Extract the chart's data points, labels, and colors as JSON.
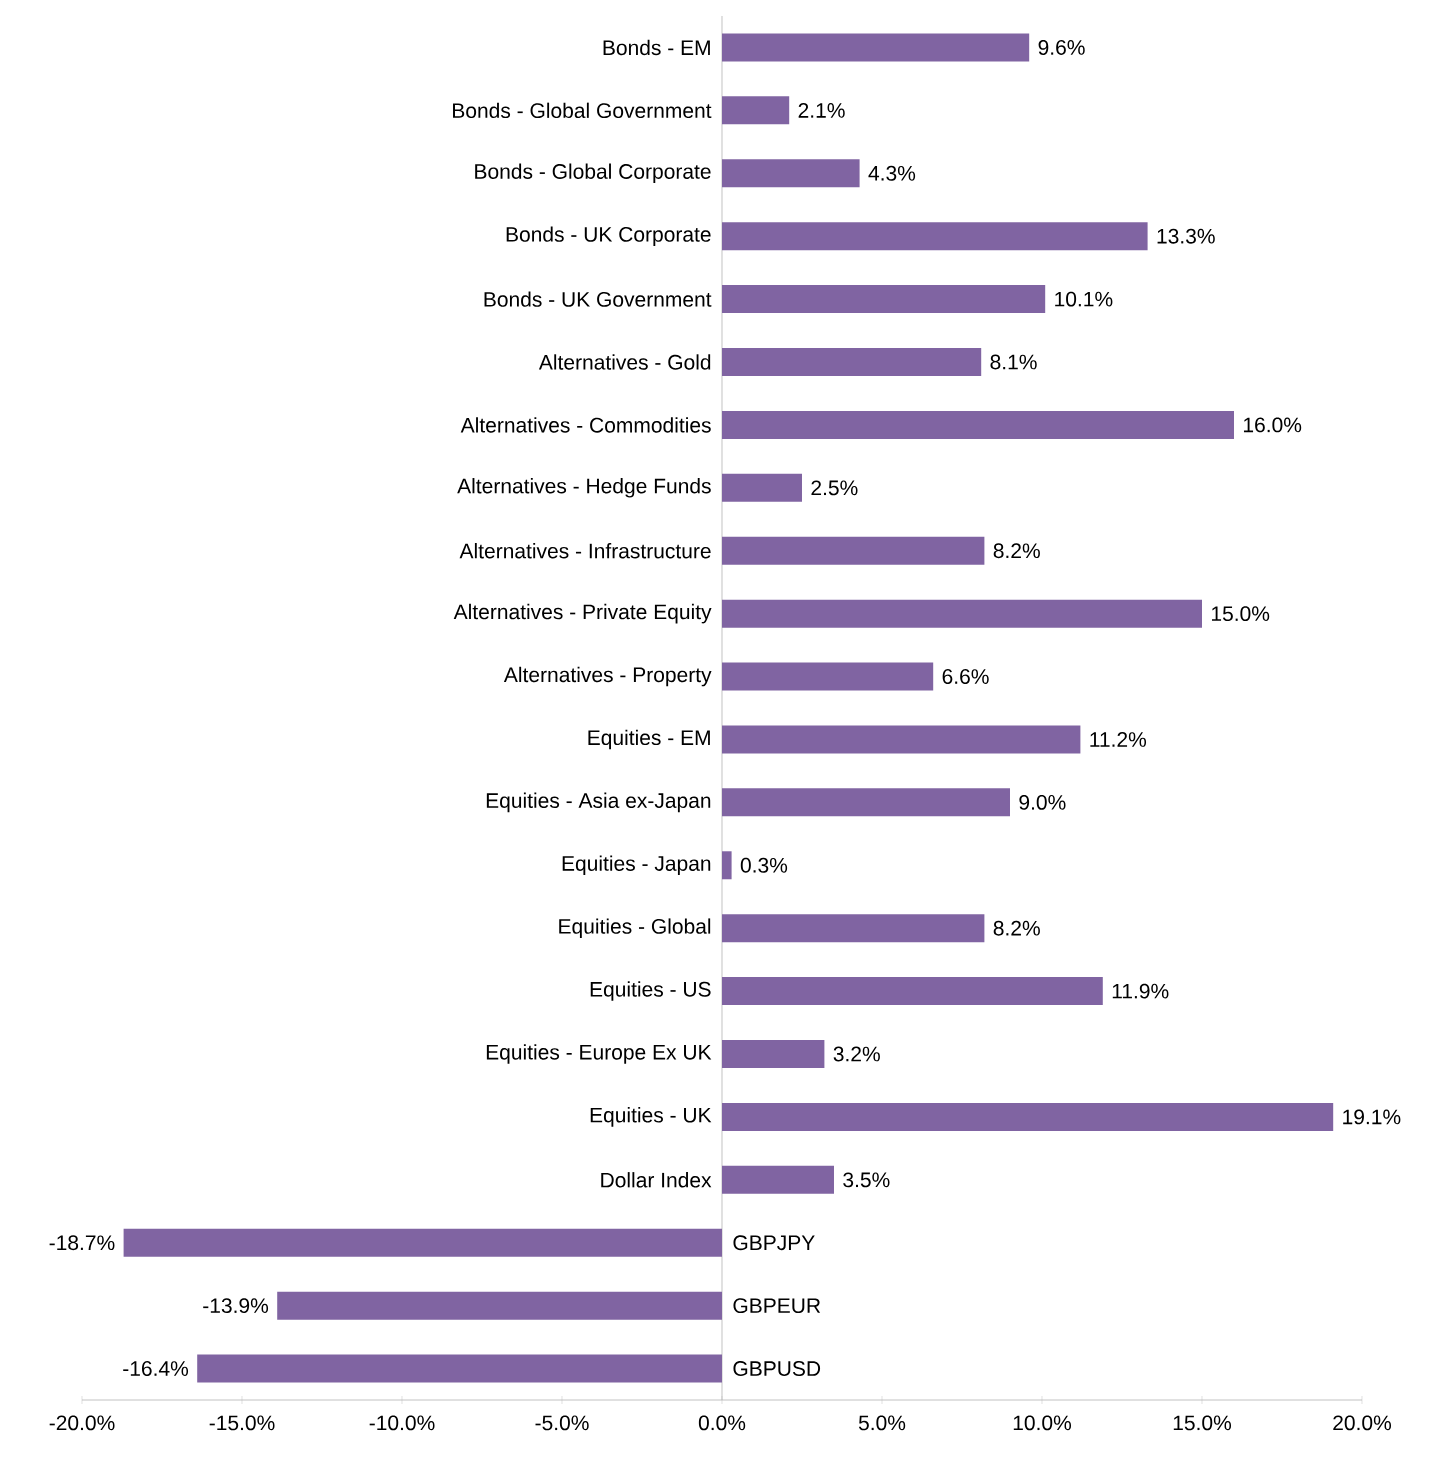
{
  "chart_data": {
    "type": "bar",
    "orientation": "horizontal",
    "categories": [
      "Bonds - EM",
      "Bonds - Global Government",
      "Bonds - Global Corporate",
      "Bonds - UK Corporate",
      "Bonds - UK Government",
      "Alternatives - Gold",
      "Alternatives - Commodities",
      "Alternatives - Hedge Funds",
      "Alternatives - Infrastructure",
      "Alternatives - Private Equity",
      "Alternatives - Property",
      "Equities - EM",
      "Equities - Asia ex-Japan",
      "Equities - Japan",
      "Equities - Global",
      "Equities - US",
      "Equities - Europe Ex UK",
      "Equities - UK",
      "Dollar Index",
      "GBPJPY",
      "GBPEUR",
      "GBPUSD"
    ],
    "values": [
      9.6,
      2.1,
      4.3,
      13.3,
      10.1,
      8.1,
      16.0,
      2.5,
      8.2,
      15.0,
      6.6,
      11.2,
      9.0,
      0.3,
      8.2,
      11.9,
      3.2,
      19.1,
      3.5,
      -18.7,
      -13.9,
      -16.4
    ],
    "value_labels": [
      "9.6%",
      "2.1%",
      "4.3%",
      "13.3%",
      "10.1%",
      "8.1%",
      "16.0%",
      "2.5%",
      "8.2%",
      "15.0%",
      "6.6%",
      "11.2%",
      "9.0%",
      "0.3%",
      "8.2%",
      "11.9%",
      "3.2%",
      "19.1%",
      "3.5%",
      "-18.7%",
      "-13.9%",
      "-16.4%"
    ],
    "color": "#8064a2",
    "xlim": [
      -20,
      20
    ],
    "xticks": [
      {
        "value": -20,
        "label": "-20.0%"
      },
      {
        "value": -15,
        "label": "-15.0%"
      },
      {
        "value": -10,
        "label": "-10.0%"
      },
      {
        "value": -5,
        "label": "-5.0%"
      },
      {
        "value": 0,
        "label": "0.0%"
      },
      {
        "value": 5,
        "label": "5.0%"
      },
      {
        "value": 10,
        "label": "10.0%"
      },
      {
        "value": 15,
        "label": "15.0%"
      },
      {
        "value": 20,
        "label": "20.0%"
      }
    ]
  }
}
